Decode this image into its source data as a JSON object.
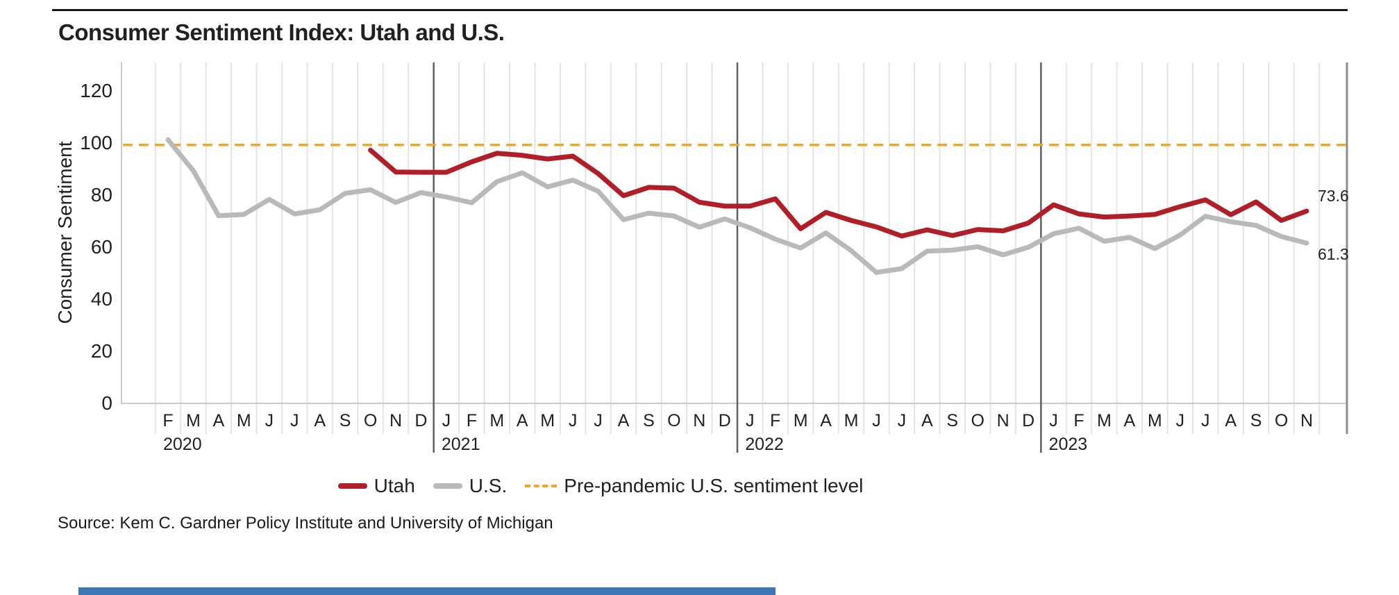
{
  "page": {
    "title": "Consumer Sentiment Index: Utah and U.S.",
    "source": "Source: Kem C. Gardner Policy Institute and University of Michigan"
  },
  "colors": {
    "utah": "#b01e28",
    "us": "#b9b9b9",
    "prepandemic": "#eca928",
    "gridline": "#e4e4e4",
    "axis": "#c9c9c9",
    "right_spine": "#8c8c8c",
    "year_divider": "#5f5f5f",
    "text": "#231f20",
    "bottom_bar": "#4077b6"
  },
  "legend": {
    "utah_label": "Utah",
    "us_label": "U.S.",
    "prepandemic_label": "Pre-pandemic U.S. sentiment level"
  },
  "chart_data": {
    "type": "line",
    "title": "Consumer Sentiment Index: Utah and U.S.",
    "ylabel": "Consumer Sentiment",
    "ylim": [
      0,
      120
    ],
    "yticks": [
      0,
      20,
      40,
      60,
      80,
      100,
      120
    ],
    "grid": "vertical",
    "x_months": [
      "F",
      "M",
      "A",
      "M",
      "J",
      "J",
      "A",
      "S",
      "O",
      "N",
      "D",
      "J",
      "F",
      "M",
      "A",
      "M",
      "J",
      "J",
      "A",
      "S",
      "O",
      "N",
      "D",
      "J",
      "F",
      "M",
      "A",
      "M",
      "J",
      "J",
      "A",
      "S",
      "O",
      "N",
      "D",
      "J",
      "F",
      "M",
      "A",
      "M",
      "J",
      "J",
      "A",
      "S",
      "O",
      "N"
    ],
    "years": [
      {
        "label": "2020",
        "start_index": 0
      },
      {
        "label": "2021",
        "start_index": 11
      },
      {
        "label": "2022",
        "start_index": 23
      },
      {
        "label": "2023",
        "start_index": 35
      }
    ],
    "reference_line": {
      "name": "Pre-pandemic U.S. sentiment level",
      "value": 99
    },
    "series": [
      {
        "name": "Utah",
        "color": "#b01e28",
        "values": [
          null,
          null,
          null,
          null,
          null,
          null,
          null,
          null,
          97.0,
          88.6,
          88.5,
          88.5,
          92.5,
          95.8,
          95.0,
          93.6,
          94.7,
          88.0,
          79.5,
          82.7,
          82.4,
          77.0,
          75.5,
          75.5,
          78.3,
          66.8,
          73.1,
          70.0,
          67.5,
          64.0,
          66.4,
          64.2,
          66.5,
          66.0,
          69.0,
          76.0,
          72.5,
          71.3,
          71.7,
          72.3,
          75.3,
          77.9,
          72.2,
          77.1,
          70.0,
          73.6
        ]
      },
      {
        "name": "U.S.",
        "color": "#b9b9b9",
        "values": [
          101.0,
          89.1,
          71.8,
          72.3,
          78.1,
          72.5,
          74.1,
          80.4,
          81.8,
          76.9,
          80.7,
          79.0,
          76.8,
          84.9,
          88.3,
          82.9,
          85.5,
          81.2,
          70.3,
          72.8,
          71.7,
          67.4,
          70.6,
          67.2,
          62.8,
          59.4,
          65.2,
          58.4,
          50.0,
          51.5,
          58.2,
          58.6,
          59.9,
          56.8,
          59.7,
          64.9,
          67.0,
          62.0,
          63.5,
          59.2,
          64.4,
          71.6,
          69.5,
          68.1,
          63.8,
          61.3
        ]
      }
    ],
    "end_labels": [
      {
        "series": "Utah",
        "text": "73.6"
      },
      {
        "series": "U.S.",
        "text": "61.3"
      }
    ],
    "legend_position": "bottom"
  }
}
